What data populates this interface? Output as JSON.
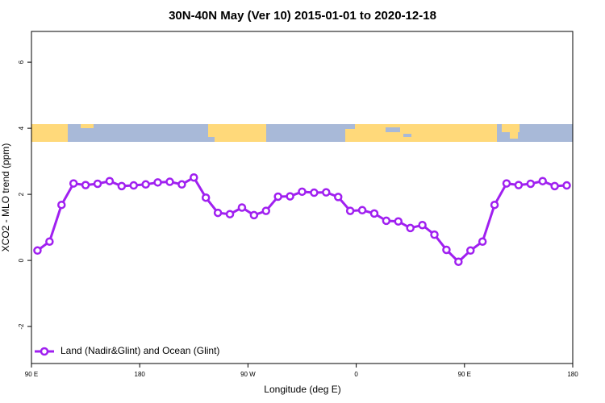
{
  "chart_data": {
    "type": "line",
    "title": "30N-40N May (Ver 10)   2015-01-01 to 2020-12-18",
    "xlabel": "Longitude (deg E)",
    "ylabel": "XCO2 - MLO trend (ppm)",
    "x": [
      95,
      105,
      115,
      125,
      135,
      145,
      155,
      165,
      175,
      185,
      195,
      205,
      215,
      225,
      235,
      245,
      255,
      265,
      275,
      285,
      295,
      305,
      315,
      325,
      335,
      345,
      355,
      365,
      375,
      385,
      395,
      405,
      415,
      425,
      435,
      445,
      455,
      465,
      475,
      485,
      495,
      505,
      515,
      525,
      535
    ],
    "series": [
      {
        "name": "Land (Nadir&Glint) and Ocean (Glint)",
        "color": "#a020f0",
        "values": [
          0.3,
          0.57,
          1.68,
          2.33,
          2.28,
          2.32,
          2.4,
          2.25,
          2.27,
          2.3,
          2.36,
          2.38,
          2.3,
          2.51,
          1.9,
          1.44,
          1.4,
          1.6,
          1.37,
          1.5,
          1.93,
          1.94,
          2.08,
          2.05,
          2.06,
          1.92,
          1.5,
          1.52,
          1.42,
          1.2,
          1.18,
          0.98,
          1.07,
          0.78,
          0.32,
          -0.04,
          0.3,
          0.57,
          1.68,
          2.33,
          2.28,
          2.32,
          2.4,
          2.25,
          2.27
        ]
      }
    ],
    "xlim": [
      90,
      540
    ],
    "xticks": [
      {
        "value": 90,
        "label": "90 E"
      },
      180,
      {
        "value": 270,
        "label": "90 W"
      },
      {
        "value": 360,
        "label": "0"
      },
      {
        "value": 450,
        "label": "90 E"
      },
      {
        "value": 540,
        "label": "180"
      }
    ],
    "ylim": [
      -3.12,
      6.93
    ],
    "yticks": [
      -2,
      0,
      2,
      4,
      6
    ],
    "legend": "bottom-left"
  }
}
